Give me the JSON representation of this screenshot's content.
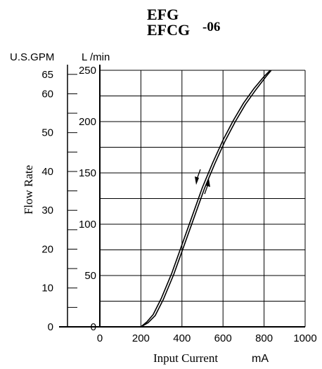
{
  "chart_data": {
    "type": "line",
    "title_lines": [
      "EFG",
      "EFCG"
    ],
    "title_suffix": "-06",
    "xlabel": "Input Current",
    "xunit": "mA",
    "ylabel": "Flow Rate",
    "y_primary_unit": "L /min",
    "y_secondary_unit": "U.S.GPM",
    "xlim": [
      -200,
      1000
    ],
    "ylim": [
      0,
      250
    ],
    "x_ticks": [
      0,
      200,
      400,
      600,
      800,
      1000
    ],
    "y_ticks_lpm": [
      0,
      50,
      100,
      150,
      200,
      250
    ],
    "y_ticks_gpm": [
      0,
      10,
      20,
      30,
      40,
      50,
      60,
      65
    ],
    "y_minor_gpm": [
      5,
      15,
      25,
      35,
      45,
      55
    ],
    "grid": true,
    "series": [
      {
        "x": [
          200,
          230,
          260,
          300,
          350,
          400,
          450,
          500,
          550,
          600,
          650,
          700,
          750,
          800,
          830
        ],
        "y": [
          0,
          5,
          12,
          28,
          52,
          80,
          108,
          136,
          160,
          182,
          201,
          218,
          232,
          244,
          250
        ]
      },
      {
        "x": [
          200,
          235,
          270,
          310,
          360,
          410,
          460,
          510,
          560,
          610,
          660,
          710,
          760,
          810,
          835
        ],
        "y": [
          0,
          4,
          11,
          27,
          51,
          79,
          107,
          135,
          159,
          181,
          200,
          217,
          231,
          244,
          250
        ]
      }
    ],
    "annotations": [
      "hysteresis arrows (up / down)"
    ]
  }
}
